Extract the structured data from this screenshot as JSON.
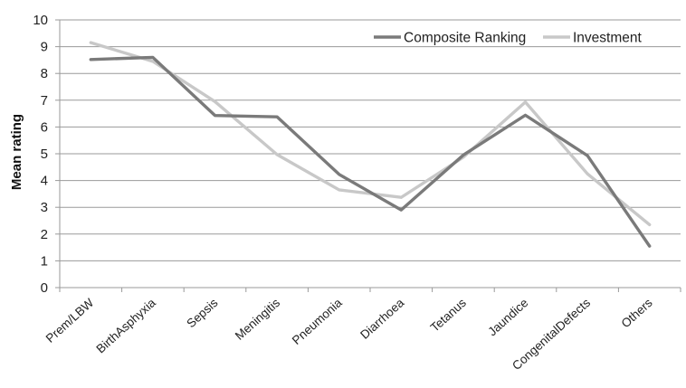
{
  "chart_data": {
    "type": "line",
    "title": "",
    "xlabel": "",
    "ylabel": "Mean rating",
    "ylim": [
      0,
      10
    ],
    "yticks": [
      0,
      1,
      2,
      3,
      4,
      5,
      6,
      7,
      8,
      9,
      10
    ],
    "grid": "horizontal",
    "legend_position": "top-right",
    "categories": [
      "Prem/LBW",
      "BirthAsphyxia",
      "Sepsis",
      "Meningitis",
      "Pneumonia",
      "Diarrhoea",
      "Tetanus",
      "Jaundice",
      "CongenitalDefects",
      "Others"
    ],
    "series": [
      {
        "name": "Composite Ranking",
        "color": "#7a7a7a",
        "values": [
          8.52,
          8.6,
          6.43,
          6.38,
          4.23,
          2.9,
          4.95,
          6.44,
          4.93,
          1.55
        ]
      },
      {
        "name": "Investment",
        "color": "#c8c8c8",
        "values": [
          9.15,
          8.45,
          6.95,
          4.97,
          3.65,
          3.37,
          4.87,
          6.93,
          4.25,
          2.35
        ]
      }
    ]
  }
}
